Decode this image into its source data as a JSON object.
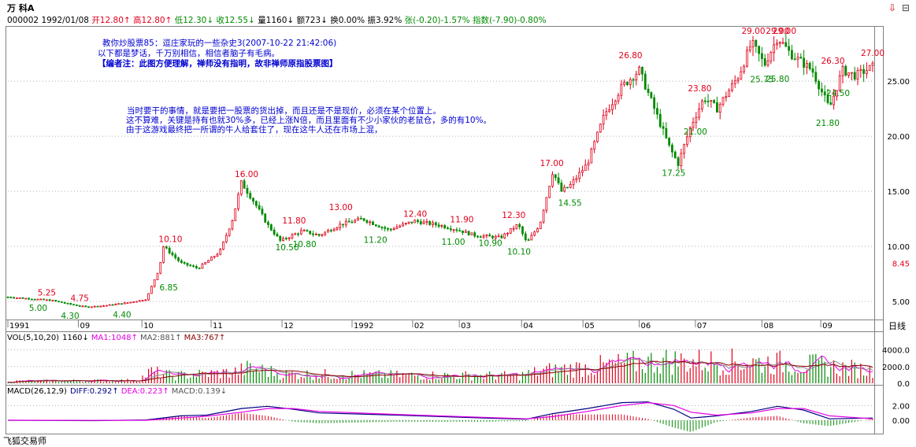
{
  "header": {
    "title": "万  科A",
    "code": "000002",
    "date": "1992/01/08",
    "open": "开12.80",
    "high": "高12.80",
    "low": "低12.30",
    "close": "收12.55",
    "vol": "量1160",
    "amount": "额723",
    "turnover": "换0.00%",
    "amplitude": "振3.92%",
    "change": "张(-0.20)-1.57%",
    "index": "指数(-7.90)-0.80%"
  },
  "annotations": {
    "block1": [
      "教你炒股票85：逗庄家玩的一些杂史3(2007-10-22 21:42:06)",
      "以下都是梦话，千万别相信，相信者脑子有毛病。",
      "【编者注：此图方便理解，禅师没有指明，故非禅师原指股票图】"
    ],
    "block2": [
      "当时要干的事情，就是要把一股票的货出掉，而且还是不是现价，必须在某个位置上。",
      "这不算难，关键是持有也就30%多，已经上涨N倍，而且里面有不少小家伙的老鼠仓，多的有10%。",
      "由于这游戏最终把一所谓的牛人给套住了，现在这牛人还在市场上混，"
    ]
  },
  "chart_data": [
    {
      "type": "candlestick",
      "y_ticks": [
        5.0,
        10.0,
        15.0,
        20.0,
        25.0
      ],
      "y_tick_labels": [
        "5.00",
        "10.00",
        "15.00",
        "20.00",
        "25.00"
      ],
      "ylim": [
        3.5,
        29.8
      ],
      "current_price": 8.45,
      "current_price_label": "8.45",
      "x_labels": [
        {
          "label": "1991",
          "t": 0
        },
        {
          "label": "09",
          "t": 0.0815
        },
        {
          "label": "10",
          "t": 0.155
        },
        {
          "label": "11",
          "t": 0.235
        },
        {
          "label": "12",
          "t": 0.317
        },
        {
          "label": "1992",
          "t": 0.398
        },
        {
          "label": "02",
          "t": 0.468
        },
        {
          "label": "03",
          "t": 0.522
        },
        {
          "label": "04",
          "t": 0.594
        },
        {
          "label": "05",
          "t": 0.665
        },
        {
          "label": "06",
          "t": 0.73
        },
        {
          "label": "07",
          "t": 0.795
        },
        {
          "label": "08",
          "t": 0.872
        },
        {
          "label": "09",
          "t": 0.94
        }
      ],
      "period_label": "日线",
      "path": [
        [
          0,
          5.4
        ],
        [
          0.05,
          5.1
        ],
        [
          0.075,
          4.7
        ],
        [
          0.09,
          4.5
        ],
        [
          0.11,
          4.6
        ],
        [
          0.14,
          4.9
        ],
        [
          0.16,
          5.2
        ],
        [
          0.175,
          8.0
        ],
        [
          0.18,
          10.0
        ],
        [
          0.2,
          8.5
        ],
        [
          0.22,
          8.0
        ],
        [
          0.245,
          9.5
        ],
        [
          0.26,
          12.5
        ],
        [
          0.27,
          15.8
        ],
        [
          0.285,
          14.0
        ],
        [
          0.3,
          12.0
        ],
        [
          0.315,
          10.5
        ],
        [
          0.34,
          11.4
        ],
        [
          0.36,
          11.0
        ],
        [
          0.385,
          12.0
        ],
        [
          0.41,
          12.5
        ],
        [
          0.44,
          11.5
        ],
        [
          0.47,
          12.3
        ],
        [
          0.5,
          11.9
        ],
        [
          0.52,
          11.5
        ],
        [
          0.54,
          11.0
        ],
        [
          0.57,
          10.8
        ],
        [
          0.59,
          12.0
        ],
        [
          0.6,
          10.3
        ],
        [
          0.615,
          12.0
        ],
        [
          0.63,
          16.8
        ],
        [
          0.64,
          15.0
        ],
        [
          0.65,
          15.5
        ],
        [
          0.67,
          17.5
        ],
        [
          0.69,
          22.0
        ],
        [
          0.71,
          24.5
        ],
        [
          0.73,
          26.0
        ],
        [
          0.75,
          22.0
        ],
        [
          0.765,
          19.0
        ],
        [
          0.775,
          17.5
        ],
        [
          0.79,
          21.0
        ],
        [
          0.805,
          23.5
        ],
        [
          0.82,
          22.5
        ],
        [
          0.845,
          25.5
        ],
        [
          0.86,
          28.5
        ],
        [
          0.875,
          26.5
        ],
        [
          0.89,
          29.0
        ],
        [
          0.905,
          27.5
        ],
        [
          0.93,
          26.0
        ],
        [
          0.95,
          22.5
        ],
        [
          0.965,
          26.0
        ],
        [
          0.98,
          25.5
        ],
        [
          1.0,
          26.3
        ]
      ],
      "price_labels": [
        {
          "t": 0.045,
          "v": 5.25,
          "text": "5.25",
          "color": "red"
        },
        {
          "t": 0.035,
          "v": 5.0,
          "text": "5.00",
          "color": "green"
        },
        {
          "t": 0.083,
          "v": 4.75,
          "text": "4.75",
          "color": "red"
        },
        {
          "t": 0.072,
          "v": 4.3,
          "text": "4.30",
          "color": "green"
        },
        {
          "t": 0.132,
          "v": 4.4,
          "text": "4.40",
          "color": "green"
        },
        {
          "t": 0.188,
          "v": 10.1,
          "text": "10.10",
          "color": "red"
        },
        {
          "t": 0.186,
          "v": 6.85,
          "text": "6.85",
          "color": "green"
        },
        {
          "t": 0.276,
          "v": 16.0,
          "text": "16.00",
          "color": "red"
        },
        {
          "t": 0.331,
          "v": 11.8,
          "text": "11.80",
          "color": "red"
        },
        {
          "t": 0.323,
          "v": 10.5,
          "text": "10.50",
          "color": "green"
        },
        {
          "t": 0.343,
          "v": 10.8,
          "text": "10.80",
          "color": "green"
        },
        {
          "t": 0.385,
          "v": 13.0,
          "text": "13.00",
          "color": "red"
        },
        {
          "t": 0.425,
          "v": 11.2,
          "text": "11.20",
          "color": "green"
        },
        {
          "t": 0.471,
          "v": 12.4,
          "text": "12.40",
          "color": "red"
        },
        {
          "t": 0.525,
          "v": 11.9,
          "text": "11.90",
          "color": "red"
        },
        {
          "t": 0.515,
          "v": 11.0,
          "text": "11.00",
          "color": "green"
        },
        {
          "t": 0.558,
          "v": 10.9,
          "text": "10.90",
          "color": "green"
        },
        {
          "t": 0.585,
          "v": 12.3,
          "text": "12.30",
          "color": "red"
        },
        {
          "t": 0.591,
          "v": 10.1,
          "text": "10.10",
          "color": "green"
        },
        {
          "t": 0.629,
          "v": 17.0,
          "text": "17.00",
          "color": "red"
        },
        {
          "t": 0.65,
          "v": 14.55,
          "text": "14.55",
          "color": "green"
        },
        {
          "t": 0.72,
          "v": 26.8,
          "text": "26.80",
          "color": "red"
        },
        {
          "t": 0.77,
          "v": 17.25,
          "text": "17.25",
          "color": "green"
        },
        {
          "t": 0.8,
          "v": 23.8,
          "text": "23.80",
          "color": "red"
        },
        {
          "t": 0.795,
          "v": 21.0,
          "text": "21.00",
          "color": "green"
        },
        {
          "t": 0.862,
          "v": 29.0,
          "text": "29.00",
          "color": "red"
        },
        {
          "t": 0.89,
          "v": 29.0,
          "text": "29.00",
          "color": "red"
        },
        {
          "t": 0.898,
          "v": 29.0,
          "text": "29.00",
          "color": "red"
        },
        {
          "t": 0.872,
          "v": 25.75,
          "text": "25.75",
          "color": "green"
        },
        {
          "t": 0.89,
          "v": 25.8,
          "text": "25.80",
          "color": "green"
        },
        {
          "t": 0.954,
          "v": 26.3,
          "text": "26.30",
          "color": "red"
        },
        {
          "t": 0.96,
          "v": 24.5,
          "text": "24.50",
          "color": "green"
        },
        {
          "t": 0.948,
          "v": 21.8,
          "text": "21.80",
          "color": "green"
        },
        {
          "t": 1.0,
          "v": 27.0,
          "text": "27.00",
          "color": "red"
        }
      ]
    },
    {
      "type": "bar",
      "name": "VOL",
      "legend": {
        "params": "VOL(5,10,20)",
        "vol": "1160↓",
        "ma1": "MA1:1048↑",
        "ma2": "MA2:881↑",
        "ma3": "MA3:767↑"
      },
      "y_ticks": [
        0,
        2000,
        4000
      ],
      "y_tick_labels": [
        "0.0",
        "2000.0",
        "4000.0"
      ],
      "ylim": [
        0,
        4800
      ],
      "profile": [
        [
          0,
          250
        ],
        [
          0.15,
          350
        ],
        [
          0.165,
          1400
        ],
        [
          0.19,
          900
        ],
        [
          0.26,
          1300
        ],
        [
          0.28,
          1800
        ],
        [
          0.32,
          1100
        ],
        [
          0.45,
          950
        ],
        [
          0.59,
          900
        ],
        [
          0.62,
          1500
        ],
        [
          0.7,
          2200
        ],
        [
          0.76,
          2700
        ],
        [
          0.8,
          2600
        ],
        [
          0.88,
          2500
        ],
        [
          0.94,
          2100
        ],
        [
          1.0,
          1500
        ]
      ]
    },
    {
      "type": "macd",
      "name": "MACD",
      "legend": {
        "params": "MACD(26,12,9)",
        "diff": "DIFF:0.292↑",
        "dea": "DEA:0.223↑",
        "macd": "MACD:0.139↓"
      },
      "y_ticks": [
        0,
        2
      ],
      "y_tick_labels": [
        "0.00",
        "2.00"
      ],
      "ylim": [
        -1.6,
        3.0
      ],
      "diff": [
        [
          0,
          0
        ],
        [
          0.1,
          -0.05
        ],
        [
          0.16,
          0.05
        ],
        [
          0.2,
          0.6
        ],
        [
          0.23,
          0.7
        ],
        [
          0.27,
          1.6
        ],
        [
          0.3,
          1.9
        ],
        [
          0.33,
          1.5
        ],
        [
          0.36,
          1.0
        ],
        [
          0.45,
          0.7
        ],
        [
          0.55,
          0.3
        ],
        [
          0.6,
          0.15
        ],
        [
          0.63,
          0.9
        ],
        [
          0.67,
          1.6
        ],
        [
          0.71,
          2.4
        ],
        [
          0.74,
          2.5
        ],
        [
          0.77,
          1.5
        ],
        [
          0.79,
          0.3
        ],
        [
          0.82,
          0.6
        ],
        [
          0.86,
          1.2
        ],
        [
          0.89,
          1.9
        ],
        [
          0.92,
          1.4
        ],
        [
          0.95,
          0.2
        ],
        [
          1.0,
          0.3
        ]
      ],
      "dea": [
        [
          0,
          0
        ],
        [
          0.1,
          -0.02
        ],
        [
          0.16,
          0.0
        ],
        [
          0.2,
          0.3
        ],
        [
          0.23,
          0.55
        ],
        [
          0.27,
          1.1
        ],
        [
          0.3,
          1.6
        ],
        [
          0.33,
          1.6
        ],
        [
          0.36,
          1.2
        ],
        [
          0.45,
          0.8
        ],
        [
          0.55,
          0.4
        ],
        [
          0.6,
          0.2
        ],
        [
          0.63,
          0.5
        ],
        [
          0.67,
          1.2
        ],
        [
          0.71,
          2.0
        ],
        [
          0.74,
          2.4
        ],
        [
          0.77,
          2.0
        ],
        [
          0.79,
          1.1
        ],
        [
          0.82,
          0.7
        ],
        [
          0.86,
          1.0
        ],
        [
          0.89,
          1.6
        ],
        [
          0.92,
          1.6
        ],
        [
          0.95,
          0.6
        ],
        [
          1.0,
          0.2
        ]
      ]
    }
  ],
  "footer": {
    "app_name": "飞狐交易师"
  },
  "window_icons": {
    "icon1": "⇩",
    "icon2": "⊟"
  },
  "colors": {
    "up": "#e0001a",
    "down": "#008a00",
    "ma1": "#e400e4",
    "ma2": "#888888",
    "ma3": "#8b0000",
    "diff": "#000080",
    "dea": "#e400e4",
    "annotation": "#0000d0"
  }
}
